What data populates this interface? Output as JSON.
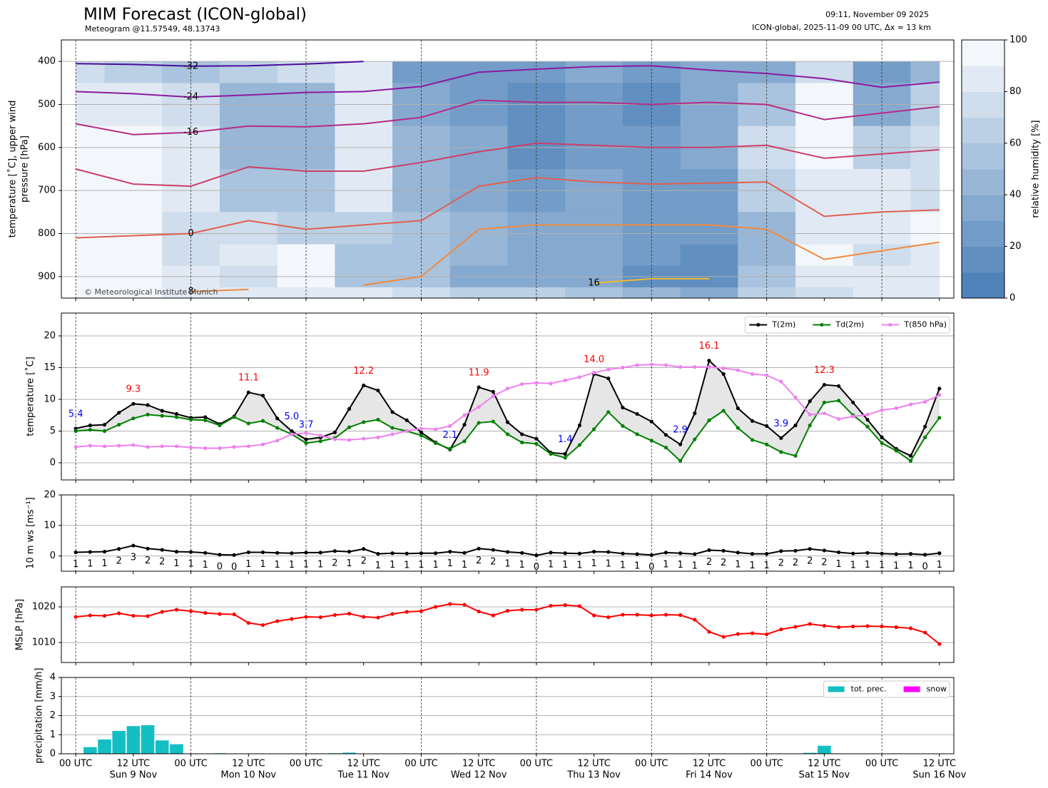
{
  "header": {
    "title": "MIM Forecast (ICON-global)",
    "subtitle": "Meteogram @11.57549, 48.13743",
    "run_time": "09:11, November 09 2025",
    "model_info": "ICON-global, 2025-11-09 00 UTC, Δx = 13 km",
    "copyright": "© Meteorological Institute Munich"
  },
  "time_axis": {
    "x": [
      0,
      3,
      6,
      9,
      12,
      15,
      18,
      21,
      24,
      27,
      30,
      33,
      36,
      39,
      42,
      45,
      48,
      51,
      54,
      57,
      60,
      63,
      66,
      69,
      72,
      75,
      78,
      81,
      84,
      87,
      90,
      93,
      96,
      99,
      102,
      105,
      108,
      111,
      114,
      117,
      120,
      123,
      126,
      129,
      132,
      135,
      138,
      141,
      144,
      147,
      150,
      153,
      156,
      159,
      162,
      165,
      168,
      171,
      174,
      177,
      180
    ],
    "xlim": [
      -3,
      183
    ],
    "xticks": [
      {
        "value": 0,
        "label": "00 UTC"
      },
      {
        "value": 12,
        "label": "12 UTC"
      },
      {
        "value": 24,
        "label": "00 UTC"
      },
      {
        "value": 36,
        "label": "12 UTC"
      },
      {
        "value": 48,
        "label": "00 UTC"
      },
      {
        "value": 60,
        "label": "12 UTC"
      },
      {
        "value": 72,
        "label": "00 UTC"
      },
      {
        "value": 84,
        "label": "12 UTC"
      },
      {
        "value": 96,
        "label": "00 UTC"
      },
      {
        "value": 108,
        "label": "12 UTC"
      },
      {
        "value": 120,
        "label": "00 UTC"
      },
      {
        "value": 132,
        "label": "12 UTC"
      },
      {
        "value": 144,
        "label": "00 UTC"
      },
      {
        "value": 156,
        "label": "12 UTC"
      },
      {
        "value": 168,
        "label": "00 UTC"
      },
      {
        "value": 180,
        "label": "12 UTC"
      }
    ],
    "day_labels": [
      {
        "value": 12,
        "label": "Sun 9 Nov"
      },
      {
        "value": 36,
        "label": "Mon 10 Nov"
      },
      {
        "value": 60,
        "label": "Tue 11 Nov"
      },
      {
        "value": 84,
        "label": "Wed 12 Nov"
      },
      {
        "value": 108,
        "label": "Thu 13 Nov"
      },
      {
        "value": 132,
        "label": "Fri 14 Nov"
      },
      {
        "value": 156,
        "label": "Sat 15 Nov"
      },
      {
        "value": 180,
        "label": "Sun 16 Nov"
      }
    ]
  },
  "chart_data": [
    {
      "type": "contour",
      "ylabel": [
        "temperature [˚C], upper wind",
        "pressure [hPa]"
      ],
      "ylim": [
        950,
        350
      ],
      "yticks": [
        400,
        500,
        600,
        700,
        800,
        900
      ],
      "grid": true,
      "grid_times": [
        0,
        12,
        24,
        36,
        48,
        60,
        72,
        84,
        96,
        108,
        120,
        132,
        144,
        156,
        168,
        180
      ],
      "levels": [
        400,
        500,
        600,
        700,
        800,
        850,
        900,
        950
      ],
      "humidity": [
        [
          75,
          60,
          55,
          60,
          70,
          85,
          20,
          20,
          20,
          35,
          25,
          30,
          35,
          75,
          20,
          40
        ],
        [
          85,
          80,
          70,
          40,
          45,
          85,
          30,
          25,
          15,
          20,
          15,
          30,
          55,
          90,
          35,
          65
        ],
        [
          90,
          90,
          80,
          45,
          40,
          85,
          40,
          35,
          15,
          25,
          20,
          35,
          70,
          90,
          60,
          75
        ],
        [
          90,
          90,
          85,
          50,
          50,
          80,
          45,
          30,
          25,
          30,
          20,
          25,
          60,
          85,
          85,
          75
        ],
        [
          90,
          95,
          75,
          75,
          60,
          65,
          50,
          40,
          30,
          35,
          25,
          20,
          45,
          85,
          85,
          90
        ],
        [
          90,
          95,
          70,
          80,
          90,
          50,
          55,
          40,
          30,
          30,
          20,
          15,
          40,
          90,
          75,
          85
        ],
        [
          90,
          95,
          85,
          75,
          95,
          55,
          50,
          35,
          35,
          35,
          15,
          10,
          55,
          85,
          80,
          85
        ],
        [
          90,
          90,
          85,
          85,
          80,
          80,
          70,
          60,
          60,
          55,
          45,
          35,
          60,
          75,
          80,
          85
        ]
      ],
      "cmap": [
        "#4f82b9",
        "#f3f7fb"
      ],
      "colorbar": {
        "label": "relative humidity [%]",
        "lim": [
          0,
          100
        ],
        "ticks": [
          0,
          20,
          40,
          60,
          80,
          100
        ]
      },
      "isotherms": [
        {
          "label": "-32",
          "color": "#4b0c9c",
          "values": [
            405,
            407,
            411,
            410,
            406,
            400,
            null,
            null,
            null,
            null,
            null,
            null,
            null,
            null,
            null,
            null
          ]
        },
        {
          "label": "-24",
          "color": "#8c1aa0",
          "values": [
            470,
            475,
            483,
            478,
            472,
            470,
            458,
            425,
            418,
            412,
            410,
            420,
            428,
            440,
            460,
            448
          ]
        },
        {
          "label": "-16",
          "color": "#b52b86",
          "values": [
            545,
            570,
            565,
            550,
            552,
            545,
            530,
            490,
            495,
            495,
            500,
            495,
            500,
            535,
            520,
            505
          ]
        },
        {
          "color": "#cc3f6a",
          "values": [
            650,
            685,
            690,
            645,
            655,
            655,
            635,
            610,
            590,
            595,
            600,
            600,
            595,
            625,
            615,
            605
          ]
        },
        {
          "label": "0",
          "color": "#e0604f",
          "values": [
            810,
            805,
            800,
            770,
            790,
            780,
            770,
            690,
            670,
            680,
            685,
            683,
            680,
            760,
            750,
            745
          ]
        },
        {
          "label": "8",
          "color": "#f08a40",
          "values": [
            null,
            null,
            935,
            930,
            null,
            920,
            900,
            790,
            780,
            780,
            780,
            780,
            790,
            860,
            840,
            820
          ]
        },
        {
          "label": "16",
          "color": "#f0b830",
          "values": [
            null,
            null,
            null,
            null,
            null,
            null,
            null,
            null,
            null,
            915,
            905,
            905,
            null,
            null,
            null,
            null
          ]
        }
      ]
    },
    {
      "type": "line",
      "ylabel": "temperature [˚C]",
      "ylim": [
        -2.7,
        23.6
      ],
      "yticks": [
        0,
        5,
        10,
        15,
        20
      ],
      "grid": true,
      "legend": "upper right",
      "fill_between": true,
      "fill_color": "#e6e6e6",
      "series": [
        {
          "name": "T(2m)",
          "color": "#000000",
          "label_color_max": "#ff0000",
          "label_color_min": "#0000ff",
          "values": [
            5.4,
            5.9,
            6.0,
            7.9,
            9.3,
            9.1,
            8.2,
            7.7,
            7.1,
            7.2,
            6.1,
            7.3,
            11.1,
            10.6,
            7.0,
            5.0,
            3.7,
            4.0,
            4.8,
            8.5,
            12.2,
            11.4,
            8.0,
            6.7,
            4.8,
            3.2,
            2.1,
            6.0,
            11.9,
            11.2,
            6.4,
            4.5,
            3.8,
            1.6,
            1.4,
            5.9,
            14.0,
            13.3,
            8.7,
            7.7,
            6.5,
            4.4,
            2.9,
            7.8,
            16.1,
            14.0,
            8.6,
            6.6,
            5.8,
            3.9,
            5.9,
            9.7,
            12.3,
            12.1,
            9.5,
            6.8,
            4.0,
            2.2,
            1.1,
            5.7,
            11.7
          ],
          "value_labels": [
            "5.4",
            null,
            null,
            null,
            "9.3",
            null,
            null,
            null,
            null,
            null,
            null,
            null,
            "11.1",
            null,
            null,
            "5.0",
            "3.7",
            null,
            null,
            null,
            "12.2",
            null,
            null,
            null,
            null,
            null,
            "2.1",
            null,
            "11.9",
            null,
            null,
            null,
            null,
            null,
            "1.4",
            null,
            "14.0",
            null,
            null,
            null,
            null,
            null,
            "2.9",
            null,
            "16.1",
            null,
            null,
            null,
            null,
            "3.9",
            null,
            null,
            "12.3",
            null,
            null,
            null,
            null,
            null,
            null,
            null,
            null
          ]
        },
        {
          "name": "Td(2m)",
          "color": "#008000",
          "values": [
            5.0,
            5.2,
            5.0,
            6.0,
            7.0,
            7.6,
            7.4,
            7.2,
            6.8,
            6.7,
            5.9,
            7.2,
            6.2,
            6.6,
            5.5,
            4.5,
            3.1,
            3.4,
            3.9,
            5.6,
            6.4,
            6.8,
            5.5,
            5.0,
            4.3,
            3.1,
            2.2,
            3.4,
            6.3,
            6.5,
            4.5,
            3.2,
            3.0,
            1.4,
            0.8,
            2.8,
            5.3,
            8.0,
            5.8,
            4.5,
            3.5,
            2.4,
            0.3,
            3.7,
            6.7,
            8.2,
            5.5,
            3.6,
            2.9,
            1.7,
            1.1,
            5.9,
            9.5,
            9.8,
            7.5,
            5.7,
            3.1,
            1.9,
            0.3,
            4.0,
            7.1
          ]
        },
        {
          "name": "T(850 hPa)",
          "color": "#ee82ee",
          "values": [
            2.5,
            2.7,
            2.6,
            2.7,
            2.8,
            2.5,
            2.6,
            2.6,
            2.4,
            2.3,
            2.3,
            2.5,
            2.6,
            2.9,
            3.5,
            4.5,
            4.7,
            4.3,
            3.7,
            3.6,
            3.8,
            4.0,
            4.5,
            5.0,
            5.4,
            5.3,
            5.8,
            7.5,
            8.8,
            10.5,
            11.7,
            12.4,
            12.6,
            12.5,
            13.0,
            13.5,
            14.2,
            14.7,
            15.0,
            15.4,
            15.5,
            15.4,
            15.1,
            15.1,
            15.1,
            14.9,
            14.6,
            14.0,
            13.8,
            12.8,
            10.3,
            7.6,
            7.8,
            6.9,
            7.3,
            7.6,
            8.3,
            8.6,
            9.2,
            9.6,
            10.7
          ]
        }
      ]
    },
    {
      "type": "line",
      "ylabel": "10 m ws [ms⁻¹]",
      "ylim": [
        -5,
        20
      ],
      "yticks": [
        0,
        10,
        20
      ],
      "grid": true,
      "series": [
        {
          "color": "#000000",
          "values": [
            1.2,
            1.3,
            1.4,
            2.3,
            3.4,
            2.4,
            2.0,
            1.4,
            1.3,
            1.0,
            0.4,
            0.3,
            1.2,
            1.2,
            1.0,
            0.9,
            1.1,
            1.1,
            1.6,
            1.4,
            2.3,
            0.7,
            0.9,
            0.8,
            0.9,
            0.9,
            1.4,
            1.0,
            2.4,
            2.0,
            1.3,
            1.0,
            0.2,
            1.1,
            0.9,
            0.8,
            1.4,
            1.3,
            0.8,
            0.6,
            0.3,
            1.1,
            0.9,
            0.6,
            1.9,
            1.7,
            1.1,
            0.7,
            0.7,
            1.6,
            1.7,
            2.3,
            1.8,
            1.2,
            0.8,
            1.0,
            0.8,
            0.6,
            0.7,
            0.4,
            0.9
          ],
          "value_labels": [
            "1",
            "1",
            "1",
            "2",
            "3",
            "2",
            "2",
            "1",
            "1",
            "1",
            "0",
            "0",
            "1",
            "1",
            "1",
            "1",
            "1",
            "1",
            "2",
            "1",
            "2",
            "1",
            "1",
            "1",
            "1",
            "1",
            "1",
            "1",
            "2",
            "2",
            "1",
            "1",
            "0",
            "1",
            "1",
            "1",
            "1",
            "1",
            "1",
            "1",
            "0",
            "1",
            "1",
            "1",
            "2",
            "2",
            "1",
            "1",
            "1",
            "2",
            "2",
            "2",
            "2",
            "1",
            "1",
            "1",
            "1",
            "1",
            "1",
            "0",
            "1"
          ]
        }
      ]
    },
    {
      "type": "line",
      "ylabel": "MSLP [hPa]",
      "ylim": [
        1004.4,
        1025.6
      ],
      "yticks": [
        1010,
        1020
      ],
      "grid": true,
      "series": [
        {
          "color": "#ff0000",
          "values": [
            1017.2,
            1017.6,
            1017.5,
            1018.2,
            1017.5,
            1017.4,
            1018.6,
            1019.2,
            1018.8,
            1018.3,
            1018.0,
            1017.9,
            1015.5,
            1014.9,
            1016.0,
            1016.6,
            1017.2,
            1017.1,
            1017.7,
            1018.1,
            1017.2,
            1017.0,
            1018.0,
            1018.6,
            1018.8,
            1020.0,
            1020.8,
            1020.6,
            1018.7,
            1017.6,
            1018.9,
            1019.2,
            1019.2,
            1020.3,
            1020.5,
            1020.2,
            1017.6,
            1017.1,
            1017.8,
            1017.8,
            1017.6,
            1017.8,
            1017.7,
            1016.4,
            1013.0,
            1011.6,
            1012.4,
            1012.6,
            1012.3,
            1013.7,
            1014.4,
            1015.2,
            1014.7,
            1014.3,
            1014.5,
            1014.6,
            1014.5,
            1014.3,
            1014.0,
            1012.8,
            1009.6
          ]
        }
      ]
    },
    {
      "type": "bar",
      "ylabel": "precipitation [mm/h]",
      "ylim": [
        0,
        4
      ],
      "yticks": [
        0,
        1,
        2,
        3,
        4
      ],
      "grid": true,
      "legend": "upper right",
      "series": [
        {
          "name": "tot. prec.",
          "color": "#14bfc4",
          "values": [
            0,
            0.35,
            0.75,
            1.2,
            1.45,
            1.5,
            0.7,
            0.5,
            0,
            0,
            0.03,
            0,
            0,
            0,
            0,
            0,
            0,
            0,
            0.03,
            0.06,
            0,
            0,
            0,
            0,
            0,
            0,
            0,
            0,
            0,
            0,
            0,
            0,
            0,
            0,
            0,
            0,
            0,
            0,
            0,
            0,
            0,
            0,
            0,
            0,
            0,
            0,
            0,
            0,
            0,
            0,
            0,
            0.05,
            0.42,
            0.02,
            0,
            0,
            0,
            0,
            0,
            0,
            0
          ]
        },
        {
          "name": "snow",
          "color": "#ff00ff",
          "values": [
            0,
            0,
            0,
            0,
            0,
            0,
            0,
            0,
            0,
            0,
            0,
            0,
            0,
            0,
            0,
            0,
            0,
            0,
            0,
            0,
            0,
            0,
            0,
            0,
            0,
            0,
            0,
            0,
            0,
            0,
            0,
            0,
            0,
            0,
            0,
            0,
            0,
            0,
            0,
            0,
            0,
            0,
            0,
            0,
            0,
            0,
            0,
            0,
            0,
            0,
            0,
            0,
            0,
            0,
            0,
            0,
            0,
            0,
            0,
            0,
            0
          ]
        }
      ]
    }
  ]
}
